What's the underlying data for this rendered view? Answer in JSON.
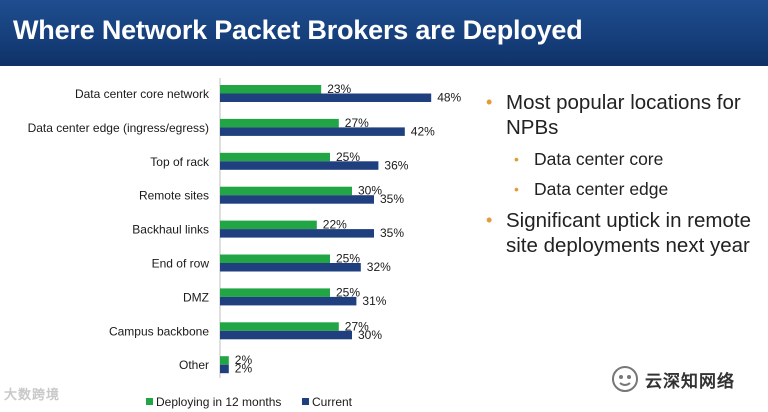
{
  "header": {
    "title": "Where Network Packet Brokers are Deployed"
  },
  "colors": {
    "deploying": "#22a645",
    "current": "#1f3f7f",
    "bullet": "#e39a3b",
    "header": "#1a4684"
  },
  "bullets": [
    {
      "text": "Most popular locations for NPBs",
      "level": 1
    },
    {
      "text": "Data center core",
      "level": 2
    },
    {
      "text": "Data center edge",
      "level": 2
    },
    {
      "text": "Significant uptick in remote site deployments next year",
      "level": 1
    }
  ],
  "watermarks": {
    "left": "大数跨境",
    "right": "云深知网络"
  },
  "chart_data": {
    "type": "bar",
    "orientation": "horizontal",
    "categories": [
      "Data center core network",
      "Data center edge (ingress/egress)",
      "Top of rack",
      "Remote sites",
      "Backhaul links",
      "End of row",
      "DMZ",
      "Campus backbone",
      "Other"
    ],
    "series": [
      {
        "name": "Deploying in 12 months",
        "values": [
          23,
          27,
          25,
          30,
          22,
          25,
          25,
          27,
          2
        ]
      },
      {
        "name": "Current",
        "values": [
          48,
          42,
          36,
          35,
          35,
          32,
          31,
          30,
          2
        ]
      }
    ],
    "value_format": "{v}%",
    "xlim": [
      0,
      60
    ],
    "grid": false,
    "legend": "bottom"
  }
}
